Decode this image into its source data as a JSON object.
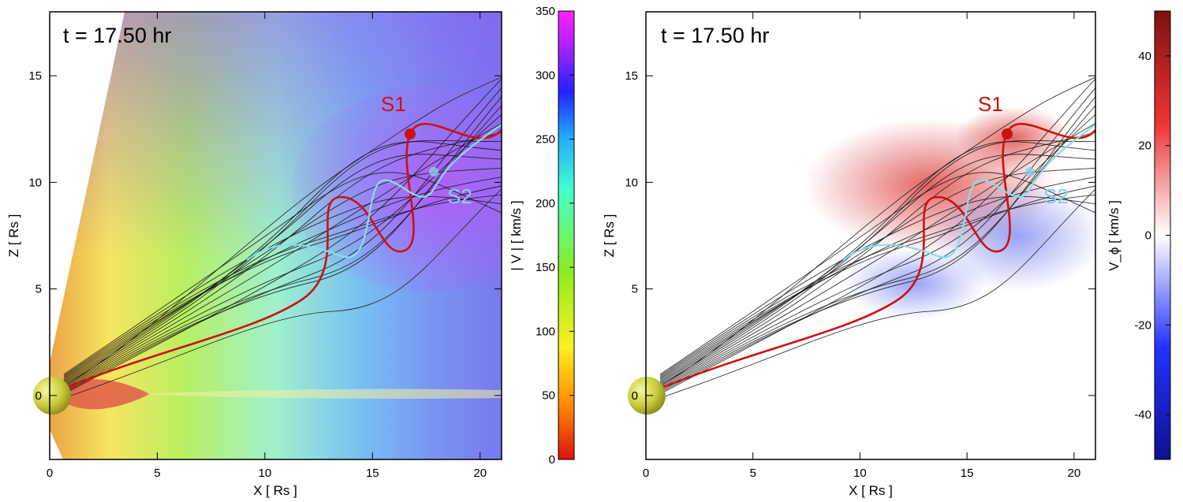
{
  "chart_data": [
    {
      "type": "heatmap",
      "panel": "left",
      "time_label": "t =  17.50 hr",
      "xlabel": "X   [ Rs ]",
      "ylabel": "Z   [ Rs ]",
      "xlim": [
        0,
        21
      ],
      "ylim": [
        -3,
        18
      ],
      "xticks": [
        0,
        5,
        10,
        15,
        20
      ],
      "yticks": [
        0,
        5,
        10,
        15
      ],
      "colorbar": {
        "label": "| V |  [ km/s ]",
        "range": [
          0,
          350
        ],
        "ticks": [
          0,
          50,
          100,
          150,
          200,
          250,
          300,
          350
        ],
        "colors": [
          "#dd1111",
          "#ff8800",
          "#ffee22",
          "#88ee22",
          "#44ffcc",
          "#22aaff",
          "#2222ff",
          "#aa22ff",
          "#ff22ff"
        ]
      },
      "strand_labels": [
        {
          "text": "S1",
          "x": 15.6,
          "y": 13.0,
          "color": "#cc1111"
        },
        {
          "text": "S2",
          "x": 18.5,
          "y": 9.1,
          "color": "#88ccee"
        }
      ]
    },
    {
      "type": "heatmap",
      "panel": "right",
      "time_label": "t =  17.50 hr",
      "xlabel": "X   [ Rs ]",
      "ylabel": "Z   [ Rs ]",
      "xlim": [
        0,
        21
      ],
      "ylim": [
        -3,
        18
      ],
      "xticks": [
        0,
        5,
        10,
        15,
        20
      ],
      "yticks": [
        0,
        5,
        10,
        15
      ],
      "colorbar": {
        "label": "V_ϕ  [ km/s ]",
        "range": [
          -50,
          50
        ],
        "ticks": [
          -40,
          -20,
          0,
          20,
          40
        ],
        "colors": [
          "#101090",
          "#2233ff",
          "#ffffff",
          "#ee3333",
          "#801010"
        ]
      },
      "strand_labels": [
        {
          "text": "S1",
          "x": 15.6,
          "y": 13.0,
          "color": "#cc1111"
        },
        {
          "text": "S2",
          "x": 18.5,
          "y": 9.1,
          "color": "#88ccee"
        }
      ]
    }
  ]
}
